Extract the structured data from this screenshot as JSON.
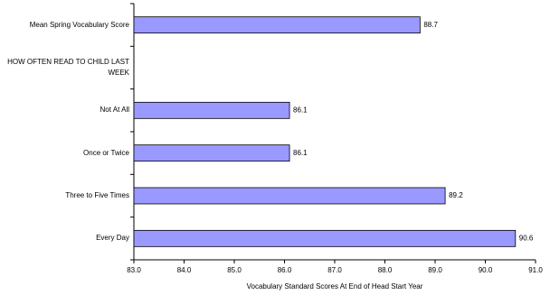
{
  "chart_data": {
    "type": "bar",
    "orientation": "horizontal",
    "categories": [
      "Mean Spring Vocabulary Score",
      "HOW OFTEN READ TO CHILD LAST WEEK",
      "Not At All",
      "Once or Twice",
      "Three to Five Times",
      "Every Day"
    ],
    "values": [
      88.7,
      null,
      86.1,
      86.1,
      89.2,
      90.6
    ],
    "color": "#9999ff",
    "xlim": [
      83,
      91
    ],
    "xticks": [
      {
        "value": 83,
        "label": "83.0"
      },
      {
        "value": 84,
        "label": "84.0"
      },
      {
        "value": 85,
        "label": "85.0"
      },
      {
        "value": 86,
        "label": "86.0"
      },
      {
        "value": 87,
        "label": "87.0"
      },
      {
        "value": 88,
        "label": "88.0"
      },
      {
        "value": 89,
        "label": "89.0"
      },
      {
        "value": 90,
        "label": "90.0"
      },
      {
        "value": 91,
        "label": "91.0"
      }
    ],
    "x_label": "Vocabulary Standard Scores At End of Head Start Year",
    "grid": false
  }
}
